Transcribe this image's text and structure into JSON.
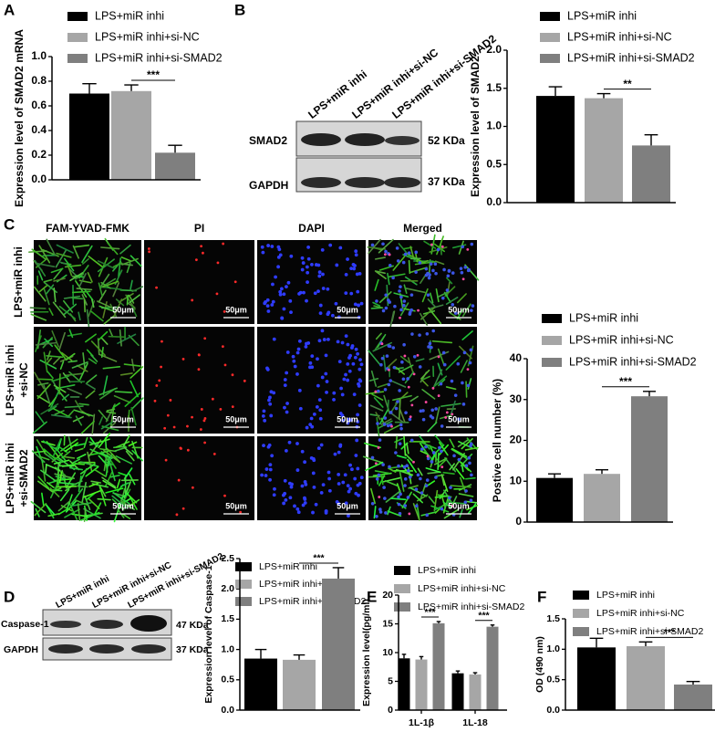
{
  "panel_labels": [
    "A",
    "B",
    "C",
    "D",
    "E",
    "F"
  ],
  "blot_b": {
    "lanes": [
      "LPS+miR inhi",
      "LPS+miR inhi+si-NC",
      "LPS+miR inhi+si-SMAD2"
    ],
    "rows": [
      {
        "protein": "SMAD2",
        "size": "52 KDa"
      },
      {
        "protein": "GAPDH",
        "size": "37 KDa"
      }
    ]
  },
  "microscopy": {
    "columns": [
      "FAM-YVAD-FMK",
      "PI",
      "DAPI",
      "Merged"
    ],
    "rows": [
      [
        "LPS+miR inhi"
      ],
      [
        "LPS+miR inhi",
        "+si-NC"
      ],
      [
        "LPS+miR inhi",
        "+si-SMAD2"
      ]
    ],
    "scale_bar": "50μm"
  },
  "blot_d": {
    "lanes": [
      "LPS+miR inhi",
      "LPS+miR inhi+si-NC",
      "LPS+miR inhi+si-SMAD2"
    ],
    "rows": [
      {
        "protein": "Caspase-1",
        "size": "47 KDa"
      },
      {
        "protein": "GAPDH",
        "size": "37 KDa"
      }
    ]
  },
  "chart_data": [
    {
      "type": "bar",
      "y_label": "Expression level of SMAD2 mRNA",
      "categories": [
        "LPS+miR inhi",
        "LPS+miR inhi+si-NC",
        "LPS+miR inhi+si-SMAD2"
      ],
      "colors": [
        "#000000",
        "#a6a6a6",
        "#7f7f7f"
      ],
      "values": [
        0.7,
        0.72,
        0.22
      ],
      "errors": [
        0.08,
        0.05,
        0.06
      ],
      "ylim": [
        0,
        1
      ],
      "yticks": [
        {
          "value": 0,
          "label": "0.0"
        },
        0.2,
        0.4,
        0.6,
        0.8,
        {
          "value": 1,
          "label": "1.0"
        }
      ],
      "significance": [
        "***"
      ]
    },
    {
      "type": "bar",
      "y_label": "Expression level of SMAD2",
      "categories": [
        "LPS+miR inhi",
        "LPS+miR inhi+si-NC",
        "LPS+miR inhi+si-SMAD2"
      ],
      "colors": [
        "#000000",
        "#a6a6a6",
        "#7f7f7f"
      ],
      "values": [
        1.4,
        1.37,
        0.75
      ],
      "errors": [
        0.12,
        0.06,
        0.14
      ],
      "ylim": [
        0,
        2
      ],
      "yticks": [
        {
          "value": 0,
          "label": "0.0"
        },
        0.5,
        {
          "value": 1,
          "label": "1.0"
        },
        1.5,
        {
          "value": 2,
          "label": "2.0"
        }
      ],
      "significance": [
        "**"
      ]
    },
    {
      "type": "bar",
      "y_label": "Postive cell number (%)",
      "categories": [
        "LPS+miR inhi",
        "LPS+miR inhi+si-NC",
        "LPS+miR inhi+si-SMAD2"
      ],
      "colors": [
        "#000000",
        "#a6a6a6",
        "#7f7f7f"
      ],
      "values": [
        10.8,
        11.8,
        30.8
      ],
      "errors": [
        1.0,
        1.0,
        1.2
      ],
      "ylim": [
        0,
        40
      ],
      "yticks": [
        0,
        10,
        20,
        30,
        40
      ],
      "significance": [
        "***"
      ]
    },
    {
      "type": "bar",
      "y_label": "Expression level of  Caspase-1",
      "categories": [
        "LPS+miR inhi",
        "LPS+miR inhi+si-NC",
        "LPS+miR inhi+si-SMAD2"
      ],
      "colors": [
        "#000000",
        "#a6a6a6",
        "#7f7f7f"
      ],
      "values": [
        0.85,
        0.83,
        2.17
      ],
      "errors": [
        0.15,
        0.08,
        0.18
      ],
      "ylim": [
        0,
        2.5
      ],
      "yticks": [
        {
          "value": 0,
          "label": "0.0"
        },
        0.5,
        {
          "value": 1,
          "label": "1.0"
        },
        1.5,
        {
          "value": 2,
          "label": "2.0"
        },
        2.5
      ],
      "significance": [
        "***"
      ]
    },
    {
      "type": "grouped_bar",
      "y_label": "Expression level(pg/ml)",
      "categories": [
        "1L-1β",
        "1L-18"
      ],
      "series": [
        {
          "name": "LPS+miR inhi",
          "color": "#000000",
          "values": [
            9.0,
            6.4
          ],
          "errors": [
            0.7,
            0.4
          ]
        },
        {
          "name": "LPS+miR inhi+si-NC",
          "color": "#a6a6a6",
          "values": [
            8.8,
            6.2
          ],
          "errors": [
            0.5,
            0.3
          ]
        },
        {
          "name": "LPS+miR inhi+si-SMAD2",
          "color": "#7f7f7f",
          "values": [
            15.1,
            14.5
          ],
          "errors": [
            0.3,
            0.3
          ]
        }
      ],
      "ylim": [
        0,
        20
      ],
      "yticks": [
        0,
        5,
        10,
        15,
        20
      ],
      "significance": [
        "***",
        "***"
      ]
    },
    {
      "type": "bar",
      "y_label": "OD (490 nm)",
      "categories": [
        "LPS+miR inhi",
        "LPS+miR inhi+si-NC",
        "LPS+miR inhi+si-SMAD2"
      ],
      "colors": [
        "#000000",
        "#a6a6a6",
        "#7f7f7f"
      ],
      "values": [
        1.03,
        1.05,
        0.42
      ],
      "errors": [
        0.15,
        0.07,
        0.05
      ],
      "ylim": [
        0,
        1.5
      ],
      "yticks": [
        {
          "value": 0,
          "label": "0.0"
        },
        0.5,
        {
          "value": 1,
          "label": "1.0"
        },
        1.5
      ],
      "significance": [
        "***"
      ]
    }
  ]
}
